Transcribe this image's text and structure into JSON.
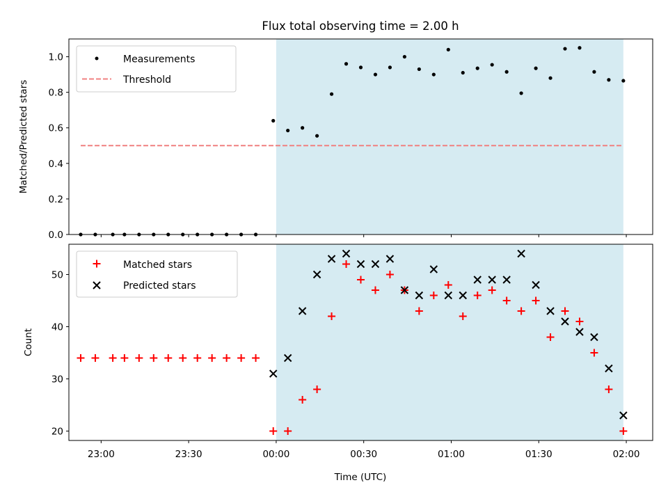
{
  "chart_data": [
    {
      "type": "scatter",
      "title": "Flux total observing time = 2.00 h",
      "ylabel": "Matched/Predicted stars",
      "ylim": [
        0,
        1.1
      ],
      "yticks": [
        "0.0",
        "0.2",
        "0.4",
        "0.6",
        "0.8",
        "1.0"
      ],
      "grid": false,
      "legend_position": "upper-left",
      "shaded_interval": [
        "00:00",
        "01:59"
      ],
      "shade_color": "#add8e6",
      "series": [
        {
          "name": "Measurements",
          "color": "#000000",
          "marker": "dot",
          "x": [
            "22:53",
            "22:58",
            "23:04",
            "23:08",
            "23:13",
            "23:18",
            "23:23",
            "23:28",
            "23:33",
            "23:38",
            "23:43",
            "23:48",
            "23:53",
            "23:59",
            "00:04",
            "00:09",
            "00:14",
            "00:19",
            "00:24",
            "00:29",
            "00:34",
            "00:39",
            "00:44",
            "00:49",
            "00:54",
            "00:59",
            "01:04",
            "01:09",
            "01:14",
            "01:19",
            "01:24",
            "01:29",
            "01:34",
            "01:39",
            "01:44",
            "01:49",
            "01:54",
            "01:59"
          ],
          "y": [
            0,
            0,
            0,
            0,
            0,
            0,
            0,
            0,
            0,
            0,
            0,
            0,
            0,
            0.64,
            0.585,
            0.6,
            0.555,
            0.79,
            0.96,
            0.94,
            0.9,
            0.94,
            1.0,
            0.93,
            0.9,
            1.04,
            0.91,
            0.935,
            0.955,
            0.915,
            0.795,
            0.935,
            0.88,
            1.045,
            1.05,
            0.915,
            0.87,
            0.865
          ]
        },
        {
          "name": "Threshold",
          "color": "#f08080",
          "style": "dashed",
          "x": [
            "22:53",
            "01:59"
          ],
          "y": [
            0.5,
            0.5
          ]
        }
      ]
    },
    {
      "type": "scatter",
      "xlabel": "Time (UTC)",
      "ylabel": "Count",
      "ylim": [
        18.2,
        55.8
      ],
      "yticks": [
        "20",
        "30",
        "40",
        "50"
      ],
      "xticks": [
        "23:00",
        "23:30",
        "00:00",
        "00:30",
        "01:00",
        "01:30",
        "02:00"
      ],
      "grid": false,
      "legend_position": "upper-left",
      "shaded_interval": [
        "00:00",
        "01:59"
      ],
      "shade_color": "#add8e6",
      "series": [
        {
          "name": "Matched stars",
          "color": "#ff0000",
          "marker": "plus",
          "x": [
            "22:53",
            "22:58",
            "23:04",
            "23:08",
            "23:13",
            "23:18",
            "23:23",
            "23:28",
            "23:33",
            "23:38",
            "23:43",
            "23:48",
            "23:53",
            "23:59",
            "00:04",
            "00:09",
            "00:14",
            "00:19",
            "00:24",
            "00:29",
            "00:34",
            "00:39",
            "00:44",
            "00:49",
            "00:54",
            "00:59",
            "01:04",
            "01:09",
            "01:14",
            "01:19",
            "01:24",
            "01:29",
            "01:34",
            "01:39",
            "01:44",
            "01:49",
            "01:54",
            "01:59"
          ],
          "y": [
            34,
            34,
            34,
            34,
            34,
            34,
            34,
            34,
            34,
            34,
            34,
            34,
            34,
            20,
            20,
            26,
            28,
            42,
            52,
            49,
            47,
            50,
            47,
            43,
            46,
            48,
            42,
            46,
            47,
            45,
            43,
            45,
            38,
            43,
            41,
            35,
            28,
            20
          ]
        },
        {
          "name": "Predicted stars",
          "color": "#000000",
          "marker": "x",
          "x": [
            "23:59",
            "00:04",
            "00:09",
            "00:14",
            "00:19",
            "00:24",
            "00:29",
            "00:34",
            "00:39",
            "00:44",
            "00:49",
            "00:54",
            "00:59",
            "01:04",
            "01:09",
            "01:14",
            "01:19",
            "01:24",
            "01:29",
            "01:34",
            "01:39",
            "01:44",
            "01:49",
            "01:54",
            "01:59"
          ],
          "y": [
            31,
            34,
            43,
            50,
            53,
            54,
            52,
            52,
            53,
            47,
            46,
            51,
            46,
            46,
            49,
            49,
            49,
            54,
            48,
            43,
            41,
            39,
            38,
            32,
            23
          ]
        }
      ]
    }
  ]
}
